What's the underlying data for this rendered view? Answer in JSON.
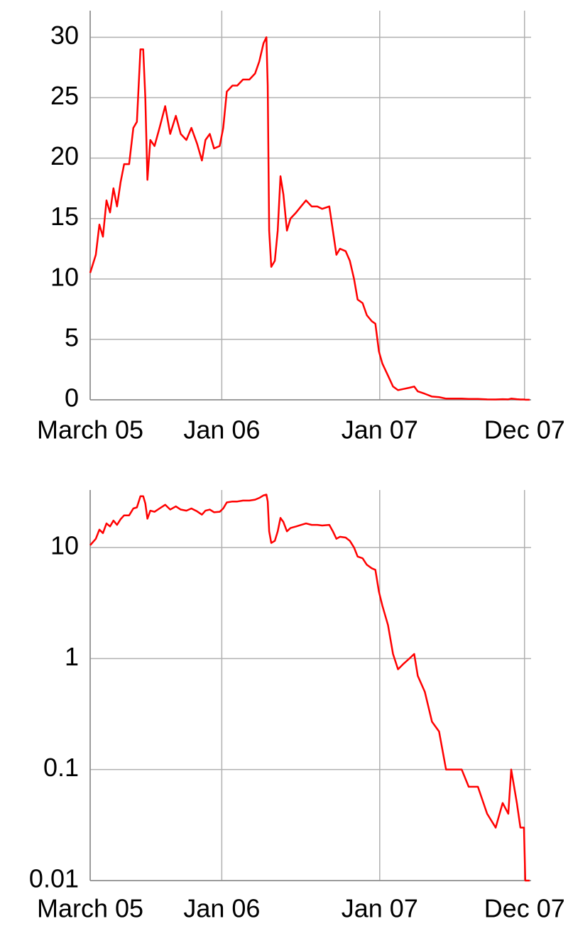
{
  "chart_data": [
    {
      "type": "line",
      "log_y": false,
      "grid": true,
      "xlim": [
        0,
        33.5
      ],
      "xticks": [
        {
          "value": 0,
          "label": "March 05"
        },
        {
          "value": 10,
          "label": "Jan 06"
        },
        {
          "value": 22,
          "label": "Jan 07"
        },
        {
          "value": 33,
          "label": "Dec 07"
        }
      ],
      "ylim": [
        0,
        32.2
      ],
      "yticks": [
        0,
        5,
        10,
        15,
        20,
        25,
        30
      ],
      "x": [
        0,
        0.43,
        0.7,
        0.97,
        1.24,
        1.51,
        1.77,
        2.04,
        2.31,
        2.58,
        2.96,
        3.28,
        3.55,
        3.82,
        4.03,
        4.19,
        4.35,
        4.57,
        4.89,
        5.27,
        5.7,
        6.08,
        6.51,
        6.88,
        7.31,
        7.69,
        8.12,
        8.49,
        8.76,
        9.09,
        9.41,
        9.84,
        10.11,
        10.38,
        10.81,
        11.18,
        11.61,
        12.1,
        12.53,
        12.85,
        13.17,
        13.39,
        13.49,
        13.6,
        13.76,
        14.03,
        14.25,
        14.46,
        14.68,
        14.95,
        15.22,
        15.65,
        16.02,
        16.4,
        16.83,
        17.26,
        17.63,
        18.17,
        18.44,
        18.71,
        18.98,
        19.41,
        19.73,
        20.05,
        20.32,
        20.7,
        21.02,
        21.4,
        21.67,
        21.94,
        22.2,
        22.63,
        23.01,
        23.39,
        23.82,
        24.25,
        24.62,
        24.89,
        25.43,
        25.97,
        26.51,
        27.04,
        27.58,
        28.23,
        28.76,
        29.46,
        30.16,
        30.81,
        31.34,
        31.77,
        31.99,
        32.42,
        32.69,
        32.96,
        33.06,
        33.39
      ],
      "series": [
        {
          "color": "#ff0000",
          "values": [
            10.5,
            12,
            14.5,
            13.5,
            16.5,
            15.5,
            17.5,
            16,
            18,
            19.5,
            19.5,
            22.5,
            23,
            29,
            29,
            25,
            18.2,
            21.5,
            21,
            22.5,
            24.3,
            22,
            23.5,
            22,
            21.5,
            22.5,
            21.2,
            19.8,
            21.5,
            22,
            20.8,
            21,
            22.5,
            25.5,
            26,
            26,
            26.5,
            26.5,
            27,
            28,
            29.5,
            30,
            26,
            14,
            11,
            11.5,
            14,
            18.5,
            17,
            14,
            15,
            15.5,
            16,
            16.5,
            16,
            16,
            15.8,
            16,
            14,
            12,
            12.5,
            12.3,
            11.5,
            10,
            8.3,
            8,
            7,
            6.5,
            6.3,
            4,
            3,
            2,
            1.1,
            0.8,
            0.9,
            1,
            1.1,
            0.7,
            0.5,
            0.27,
            0.22,
            0.1,
            0.1,
            0.1,
            0.07,
            0.07,
            0.04,
            0.03,
            0.05,
            0.04,
            0.1,
            0.05,
            0.03,
            0.03,
            0.01,
            0.01
          ]
        }
      ]
    },
    {
      "type": "line",
      "log_y": true,
      "grid": true,
      "xlim": [
        0,
        33.5
      ],
      "xticks": [
        {
          "value": 0,
          "label": "March 05"
        },
        {
          "value": 10,
          "label": "Jan 06"
        },
        {
          "value": 22,
          "label": "Jan 07"
        },
        {
          "value": 33,
          "label": "Dec 07"
        }
      ],
      "ylim": [
        0.01,
        33
      ],
      "yticks": [
        0.01,
        0.1,
        1,
        10
      ],
      "x": [
        0,
        0.43,
        0.7,
        0.97,
        1.24,
        1.51,
        1.77,
        2.04,
        2.31,
        2.58,
        2.96,
        3.28,
        3.55,
        3.82,
        4.03,
        4.19,
        4.35,
        4.57,
        4.89,
        5.27,
        5.7,
        6.08,
        6.51,
        6.88,
        7.31,
        7.69,
        8.12,
        8.49,
        8.76,
        9.09,
        9.41,
        9.84,
        10.11,
        10.38,
        10.81,
        11.18,
        11.61,
        12.1,
        12.53,
        12.85,
        13.17,
        13.39,
        13.49,
        13.6,
        13.76,
        14.03,
        14.25,
        14.46,
        14.68,
        14.95,
        15.22,
        15.65,
        16.02,
        16.4,
        16.83,
        17.26,
        17.63,
        18.17,
        18.44,
        18.71,
        18.98,
        19.41,
        19.73,
        20.05,
        20.32,
        20.7,
        21.02,
        21.4,
        21.67,
        21.94,
        22.2,
        22.63,
        23.01,
        23.39,
        23.82,
        24.25,
        24.62,
        24.89,
        25.43,
        25.97,
        26.51,
        27.04,
        27.58,
        28.23,
        28.76,
        29.46,
        30.16,
        30.81,
        31.34,
        31.77,
        31.99,
        32.42,
        32.69,
        32.96,
        33.06,
        33.39
      ],
      "series": [
        {
          "color": "#ff0000",
          "values": [
            10.5,
            12,
            14.5,
            13.5,
            16.5,
            15.5,
            17.5,
            16,
            18,
            19.5,
            19.5,
            22.5,
            23,
            29,
            29,
            25,
            18.2,
            21.5,
            21,
            22.5,
            24.3,
            22,
            23.5,
            22,
            21.5,
            22.5,
            21.2,
            19.8,
            21.5,
            22,
            20.8,
            21,
            22.5,
            25.5,
            26,
            26,
            26.5,
            26.5,
            27,
            28,
            29.5,
            30,
            26,
            14,
            11,
            11.5,
            14,
            18.5,
            17,
            14,
            15,
            15.5,
            16,
            16.5,
            16,
            16,
            15.8,
            16,
            14,
            12,
            12.5,
            12.3,
            11.5,
            10,
            8.3,
            8,
            7,
            6.5,
            6.3,
            4,
            3,
            2,
            1.1,
            0.8,
            0.9,
            1,
            1.1,
            0.7,
            0.5,
            0.27,
            0.22,
            0.1,
            0.1,
            0.1,
            0.07,
            0.07,
            0.04,
            0.03,
            0.05,
            0.04,
            0.1,
            0.05,
            0.03,
            0.03,
            0.01,
            0.01
          ]
        }
      ]
    }
  ]
}
